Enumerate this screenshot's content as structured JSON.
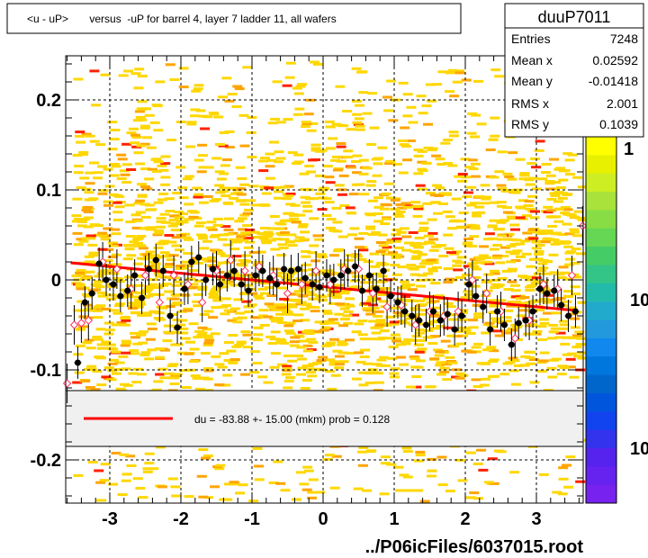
{
  "title": "<u - uP>       versus  -uP for barrel 4, layer 7 ladder 11, all wafers",
  "footer": "../P06icFiles/6037015.root",
  "stats": {
    "name": "duuP7011",
    "rows": [
      {
        "label": "Entries",
        "value": "7248"
      },
      {
        "label": "Mean x",
        "value": "0.02592"
      },
      {
        "label": "Mean y",
        "value": "-0.01418"
      },
      {
        "label": "RMS x",
        "value": "2.001"
      },
      {
        "label": "RMS y",
        "value": "0.1039"
      }
    ]
  },
  "fit_legend": "du =  -83.88 +- 15.00 (mkm) prob = 0.128",
  "palette_labels": [
    "1",
    "10",
    "10"
  ],
  "colors": {
    "hist_fill": "#ffd700",
    "hist_dark": "#ffa500",
    "hist_red": "#ff2200",
    "fit_line": "#ff0000",
    "profile_black": "#000000",
    "profile_open": "#ff3366"
  },
  "chart_data": {
    "type": "scatter",
    "title": "<u - uP>       versus  -uP for barrel 4, layer 7 ladder 11, all wafers",
    "xlim": [
      -3.65,
      3.65
    ],
    "ylim": [
      -0.25,
      0.25
    ],
    "x_ticks": [
      -3,
      -2,
      -1,
      0,
      1,
      2,
      3
    ],
    "y_ticks": [
      -0.2,
      -0.1,
      0,
      0.1,
      0.2
    ],
    "x_tick_labels": [
      "-3",
      "-2",
      "-1",
      "0",
      "1",
      "2",
      "3"
    ],
    "y_tick_labels": [
      "-0.2",
      "-0.1",
      "0",
      "0.1",
      "0.2"
    ],
    "grid": true,
    "fit": {
      "x": [
        -3.55,
        3.55
      ],
      "y": [
        0.019,
        -0.034
      ]
    },
    "profile_filled": {
      "x": [
        -3.45,
        -3.35,
        -3.25,
        -3.15,
        -3.05,
        -2.95,
        -2.85,
        -2.75,
        -2.65,
        -2.55,
        -2.45,
        -2.35,
        -2.25,
        -2.15,
        -2.05,
        -1.95,
        -1.85,
        -1.75,
        -1.65,
        -1.55,
        -1.45,
        -1.35,
        -1.25,
        -1.15,
        -1.05,
        -0.95,
        -0.85,
        -0.75,
        -0.65,
        -0.55,
        -0.45,
        -0.35,
        -0.25,
        -0.15,
        -0.05,
        0.05,
        0.15,
        0.25,
        0.35,
        0.45,
        0.55,
        0.65,
        0.75,
        0.85,
        0.95,
        1.05,
        1.15,
        1.25,
        1.35,
        1.45,
        1.55,
        1.65,
        1.75,
        1.85,
        1.95,
        2.05,
        2.15,
        2.25,
        2.35,
        2.45,
        2.55,
        2.65,
        2.75,
        2.85,
        2.95,
        3.05,
        3.15,
        3.25,
        3.35,
        3.45,
        3.55
      ],
      "y": [
        -0.092,
        -0.025,
        -0.015,
        0.018,
        0.0,
        -0.005,
        -0.018,
        -0.012,
        0.005,
        -0.02,
        0.012,
        0.022,
        0.01,
        -0.04,
        -0.053,
        -0.01,
        0.02,
        0.025,
        0.0,
        0.012,
        -0.005,
        0.005,
        0.01,
        -0.005,
        -0.012,
        0.005,
        0.01,
        0.002,
        -0.005,
        0.012,
        0.01,
        0.012,
        0.002,
        -0.005,
        -0.008,
        0.005,
        0.0,
        0.005,
        0.01,
        0.015,
        -0.012,
        0.005,
        -0.01,
        0.01,
        -0.018,
        -0.025,
        -0.035,
        -0.04,
        -0.045,
        -0.05,
        -0.035,
        -0.045,
        -0.038,
        -0.055,
        -0.04,
        -0.005,
        -0.018,
        -0.03,
        -0.055,
        -0.035,
        -0.05,
        -0.072,
        -0.048,
        -0.045,
        -0.035,
        -0.01,
        -0.015,
        -0.012,
        -0.028,
        -0.04,
        -0.035
      ]
    },
    "profile_open": {
      "x": [
        -3.6,
        -3.5,
        -3.4,
        -3.3,
        -3.1,
        -2.9,
        -2.7,
        -2.5,
        -2.3,
        -2.1,
        -1.9,
        -1.7,
        -1.5,
        -1.3,
        -1.1,
        -0.9,
        -0.7,
        -0.5,
        -0.3,
        -0.1,
        0.1,
        0.3,
        0.5,
        0.7,
        0.9,
        1.1,
        1.3,
        1.5,
        1.7,
        1.9,
        2.1,
        2.3,
        2.5,
        2.7,
        2.9,
        3.1,
        3.3,
        3.5,
        3.65
      ],
      "y": [
        -0.115,
        -0.05,
        -0.048,
        -0.045,
        0.02,
        0.012,
        -0.01,
        0.005,
        -0.025,
        0.005,
        -0.005,
        -0.025,
        0.01,
        0.022,
        0.01,
        0.015,
        0.005,
        -0.015,
        -0.005,
        0.01,
        -0.005,
        0.012,
        0.012,
        -0.015,
        -0.03,
        -0.028,
        -0.05,
        -0.035,
        -0.04,
        -0.035,
        0.0,
        -0.015,
        -0.035,
        -0.065,
        -0.045,
        -0.005,
        -0.01,
        0.005,
        0.06
      ]
    }
  }
}
